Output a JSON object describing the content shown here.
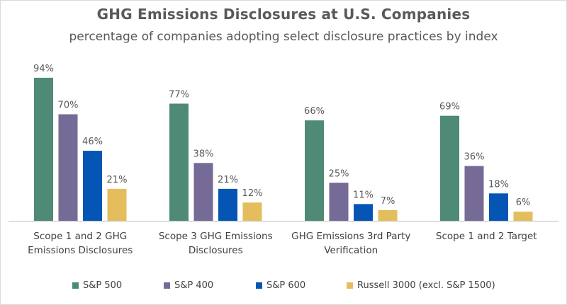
{
  "chart_data": {
    "type": "bar",
    "title": "GHG Emissions Disclosures at U.S. Companies",
    "subtitle": "percentage of companies adopting select disclosure practices by index",
    "xlabel": "",
    "ylabel": "",
    "ylim": [
      0,
      100
    ],
    "value_suffix": "%",
    "categories": [
      [
        "Scope 1 and 2 GHG",
        "Emissions Disclosures"
      ],
      [
        "Scope 3 GHG Emissions",
        "Disclosures"
      ],
      [
        "GHG Emissions 3rd Party",
        "Verification"
      ],
      [
        "Scope 1 and 2 Target"
      ]
    ],
    "series": [
      {
        "name": "S&P 500",
        "color": "#4e8a75",
        "values": [
          94,
          77,
          66,
          69
        ]
      },
      {
        "name": "S&P 400",
        "color": "#766a96",
        "values": [
          70,
          38,
          25,
          36
        ]
      },
      {
        "name": "S&P 600",
        "color": "#0455b4",
        "values": [
          46,
          21,
          11,
          18
        ]
      },
      {
        "name": "Russell 3000 (excl. S&P 1500)",
        "color": "#e4bd5c",
        "values": [
          21,
          12,
          7,
          6
        ]
      }
    ],
    "legend_position": "bottom",
    "grid": false
  }
}
